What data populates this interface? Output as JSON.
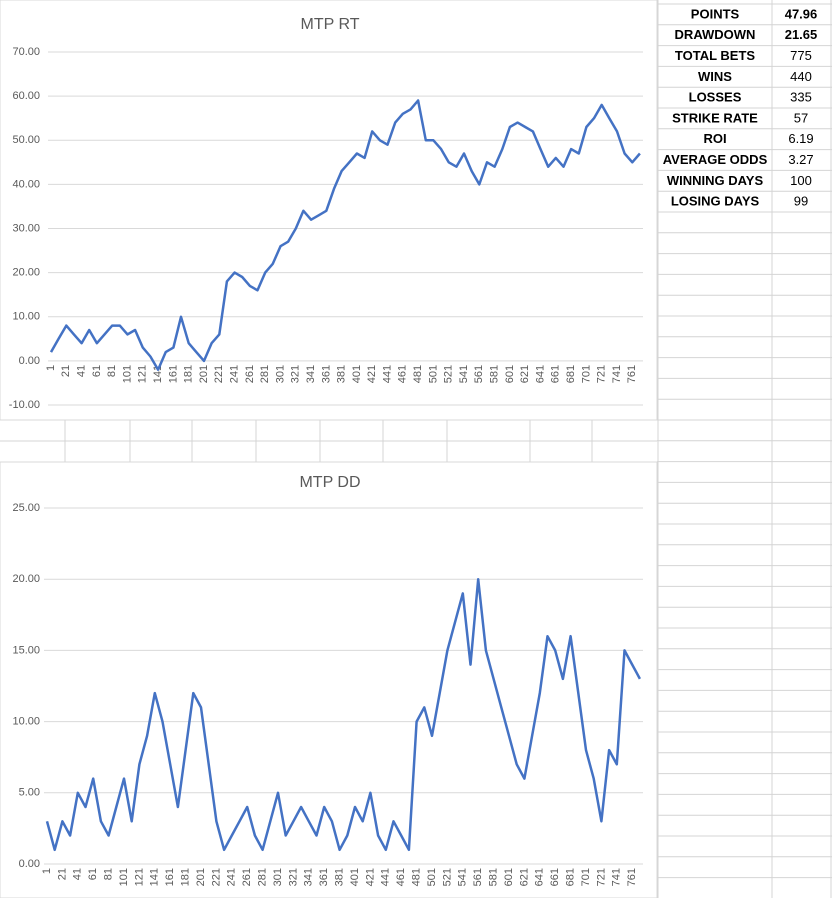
{
  "chart_data": [
    {
      "type": "line",
      "title": "MTP RT",
      "x": [
        1,
        11,
        21,
        31,
        41,
        51,
        61,
        71,
        81,
        91,
        101,
        111,
        121,
        131,
        141,
        151,
        161,
        171,
        181,
        191,
        201,
        211,
        221,
        231,
        241,
        251,
        261,
        271,
        281,
        291,
        301,
        311,
        321,
        331,
        341,
        351,
        361,
        371,
        381,
        391,
        401,
        411,
        421,
        431,
        441,
        451,
        461,
        471,
        481,
        491,
        501,
        511,
        521,
        531,
        541,
        551,
        561,
        571,
        581,
        591,
        601,
        611,
        621,
        631,
        641,
        651,
        661,
        671,
        681,
        691,
        701,
        711,
        721,
        731,
        741,
        751,
        761,
        771
      ],
      "series": [
        {
          "color": "#4472c4",
          "values": [
            2,
            5,
            8,
            6,
            4,
            7,
            4,
            6,
            8,
            8,
            6,
            7,
            3,
            1,
            -2,
            2,
            3,
            10,
            4,
            2,
            0,
            4,
            6,
            18,
            20,
            19,
            17,
            16,
            20,
            22,
            26,
            27,
            30,
            34,
            32,
            33,
            34,
            39,
            43,
            45,
            47,
            46,
            52,
            50,
            49,
            54,
            56,
            57,
            59,
            50,
            50,
            48,
            45,
            44,
            47,
            43,
            40,
            45,
            44,
            48,
            53,
            54,
            53,
            52,
            48,
            44,
            46,
            44,
            48,
            47,
            53,
            55,
            58,
            55,
            52,
            47,
            45,
            47
          ]
        }
      ],
      "xlim": [
        1,
        775
      ],
      "xticks": [
        1,
        21,
        41,
        61,
        81,
        101,
        121,
        141,
        161,
        181,
        201,
        221,
        241,
        261,
        281,
        301,
        321,
        341,
        361,
        381,
        401,
        421,
        441,
        461,
        481,
        501,
        521,
        541,
        561,
        581,
        601,
        621,
        641,
        661,
        681,
        701,
        721,
        741,
        761
      ],
      "ylim": [
        -10,
        70
      ],
      "yticks": [
        {
          "value": -10,
          "label": "-10.00"
        },
        {
          "value": 0,
          "label": "0.00"
        },
        {
          "value": 10,
          "label": "10.00"
        },
        {
          "value": 20,
          "label": "20.00"
        },
        {
          "value": 30,
          "label": "30.00"
        },
        {
          "value": 40,
          "label": "40.00"
        },
        {
          "value": 50,
          "label": "50.00"
        },
        {
          "value": 60,
          "label": "60.00"
        },
        {
          "value": 70,
          "label": "70.00"
        }
      ],
      "grid": true
    },
    {
      "type": "line",
      "title": "MTP DD",
      "x": [
        1,
        11,
        21,
        31,
        41,
        51,
        61,
        71,
        81,
        91,
        101,
        111,
        121,
        131,
        141,
        151,
        161,
        171,
        181,
        191,
        201,
        211,
        221,
        231,
        241,
        251,
        261,
        271,
        281,
        291,
        301,
        311,
        321,
        331,
        341,
        351,
        361,
        371,
        381,
        391,
        401,
        411,
        421,
        431,
        441,
        451,
        461,
        471,
        481,
        491,
        501,
        511,
        521,
        531,
        541,
        551,
        561,
        571,
        581,
        591,
        601,
        611,
        621,
        631,
        641,
        651,
        661,
        671,
        681,
        691,
        701,
        711,
        721,
        731,
        741,
        751,
        761,
        771
      ],
      "series": [
        {
          "color": "#4472c4",
          "values": [
            3,
            1,
            3,
            2,
            5,
            4,
            6,
            3,
            2,
            4,
            6,
            3,
            7,
            9,
            12,
            10,
            7,
            4,
            8,
            12,
            11,
            7,
            3,
            1,
            2,
            3,
            4,
            2,
            1,
            3,
            5,
            2,
            3,
            4,
            3,
            2,
            4,
            3,
            1,
            2,
            4,
            3,
            5,
            2,
            1,
            3,
            2,
            1,
            10,
            11,
            9,
            12,
            15,
            17,
            19,
            14,
            20,
            15,
            13,
            11,
            9,
            7,
            6,
            9,
            12,
            16,
            15,
            13,
            16,
            12,
            8,
            6,
            3,
            8,
            7,
            15,
            14,
            13
          ]
        }
      ],
      "xlim": [
        1,
        775
      ],
      "xticks": [
        1,
        21,
        41,
        61,
        81,
        101,
        121,
        141,
        161,
        181,
        201,
        221,
        241,
        261,
        281,
        301,
        321,
        341,
        361,
        381,
        401,
        421,
        441,
        461,
        481,
        501,
        521,
        541,
        561,
        581,
        601,
        621,
        641,
        661,
        681,
        701,
        721,
        741,
        761
      ],
      "ylim": [
        0,
        25
      ],
      "yticks": [
        {
          "value": 0,
          "label": "0.00"
        },
        {
          "value": 5,
          "label": "5.00"
        },
        {
          "value": 10,
          "label": "10.00"
        },
        {
          "value": 15,
          "label": "15.00"
        },
        {
          "value": 20,
          "label": "20.00"
        },
        {
          "value": 25,
          "label": "25.00"
        }
      ],
      "grid": true
    }
  ],
  "table": {
    "rows": [
      [
        "POINTS",
        47.96
      ],
      [
        "DRAWDOWN",
        21.65
      ],
      [
        "TOTAL BETS",
        775
      ],
      [
        "WINS",
        440
      ],
      [
        "LOSSES",
        335
      ],
      [
        "STRIKE RATE",
        57
      ],
      [
        "ROI",
        6.19
      ],
      [
        "AVERAGE ODDS",
        3.27
      ],
      [
        "WINNING DAYS",
        100
      ],
      [
        "LOSING DAYS",
        99
      ]
    ]
  }
}
